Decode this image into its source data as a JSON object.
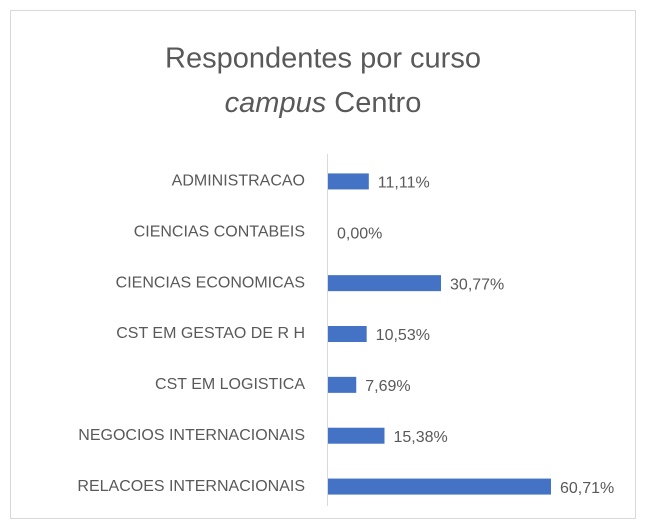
{
  "chart_data": {
    "type": "bar",
    "orientation": "horizontal",
    "title": "Respondentes por curso",
    "subtitle": [
      "campus",
      "Centro"
    ],
    "categories": [
      "ADMINISTRACAO",
      "CIENCIAS CONTABEIS",
      "CIENCIAS ECONOMICAS",
      "CST EM GESTAO DE R H",
      "CST EM LOGISTICA",
      "NEGOCIOS INTERNACIONAIS",
      "RELACOES INTERNACIONAIS"
    ],
    "values": [
      11.11,
      0,
      30.77,
      10.53,
      7.69,
      15.38,
      60.71
    ],
    "value_labels": [
      "11,11%",
      "0,00%",
      "30,77%",
      "10,53%",
      "7,69%",
      "15,38%",
      "60,71%"
    ],
    "color": "#4472c4"
  }
}
